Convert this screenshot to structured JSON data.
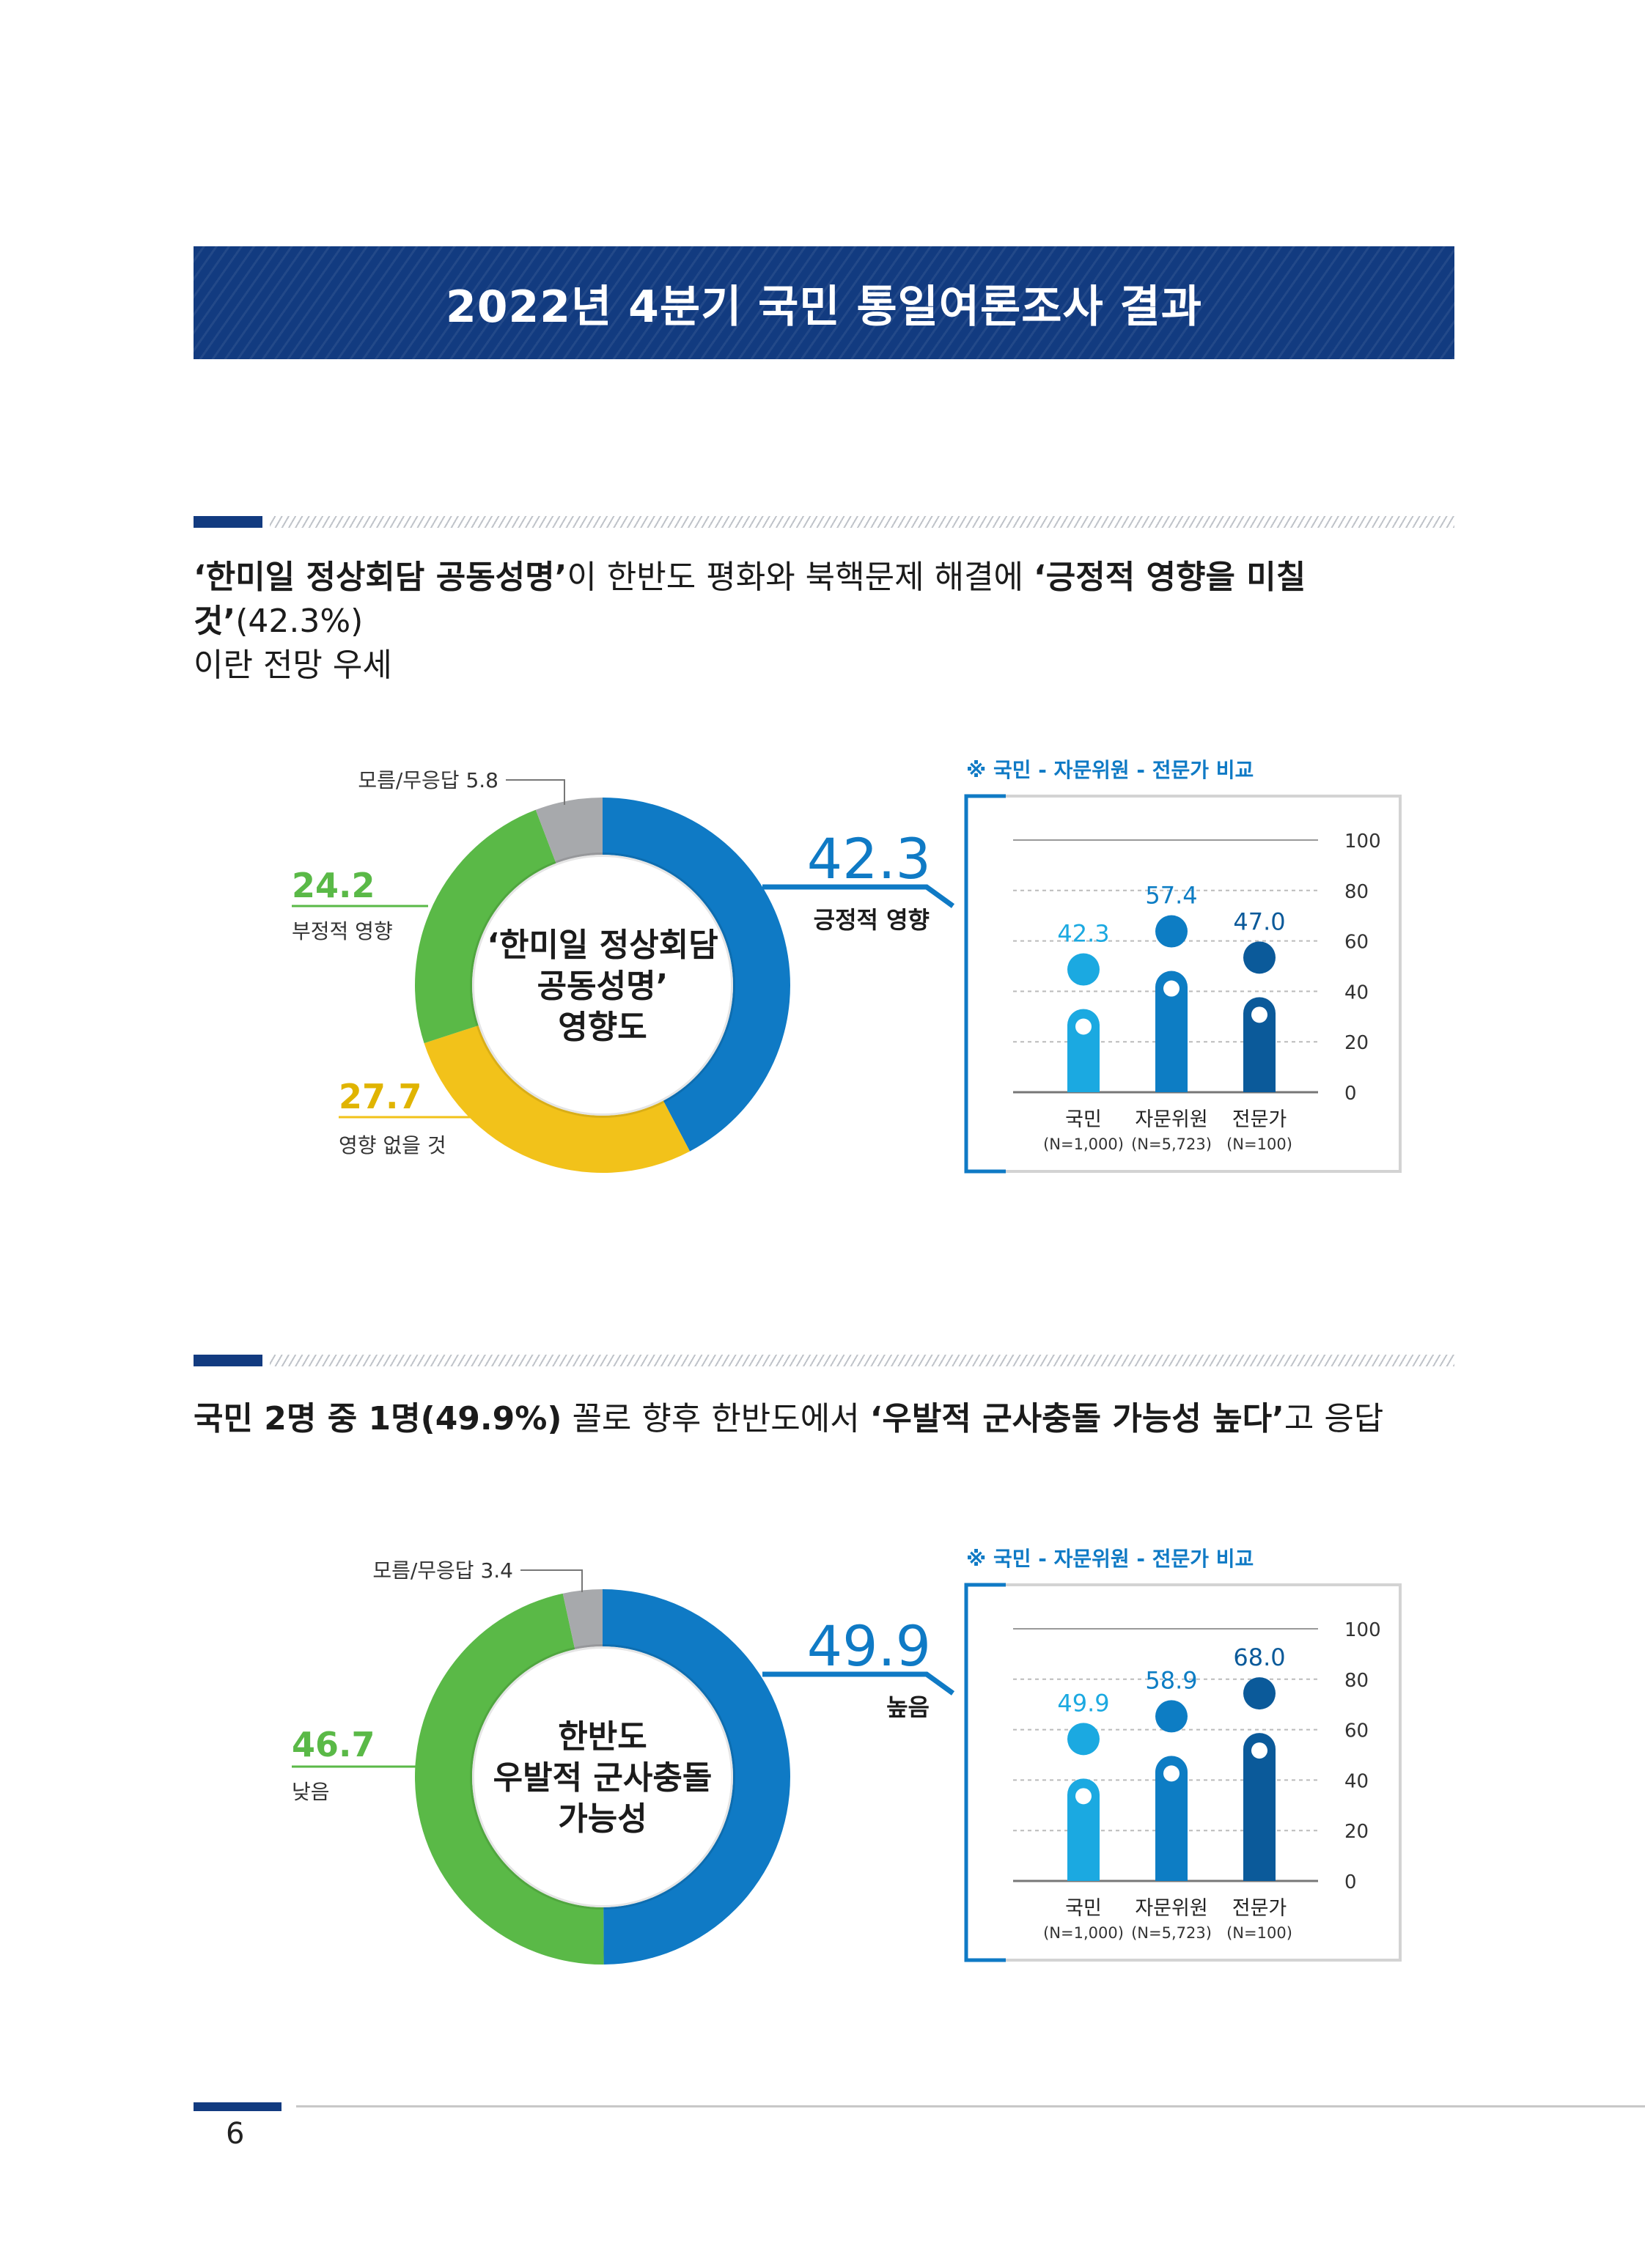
{
  "banner": {
    "title": "2022년 4분기 국민 통일여론조사 결과"
  },
  "section1": {
    "headline": {
      "p1": "‘한미일 정상회담 공동성명’",
      "p2": "이 한반도 평화와 북핵문제 해결에 ",
      "p3": "‘긍정적 영향을 미칠 것’",
      "p4": "(42.3%)",
      "p5": "이란 전망 우세"
    }
  },
  "section2": {
    "headline": {
      "p1": "국민 2명 중 1명(49.9%)",
      "p2": " 꼴로 향후 한반도에서 ",
      "p3": "‘우발적 군사충돌 가능성 높다’",
      "p4": "고 응답"
    }
  },
  "footer": {
    "page_number": "6"
  },
  "colors": {
    "blue": "#0f7ac5",
    "green": "#5ab947",
    "yellow": "#f2c21a",
    "gray": "#a7a9ac",
    "navy": "#123b80",
    "bar_light": "#1ba9e1",
    "bar_mid": "#0d7dc4",
    "bar_dark": "#0b5a9a"
  },
  "chart_data": [
    {
      "type": "pie",
      "center_label": [
        "‘한미일 정상회담",
        "공동성명’",
        "영향도"
      ],
      "slices": [
        {
          "label": "긍정적 영향",
          "value": 42.3,
          "color": "#0f7ac5"
        },
        {
          "label": "영향 없을 것",
          "value": 27.7,
          "color": "#f2c21a"
        },
        {
          "label": "부정적 영향",
          "value": 24.2,
          "color": "#5ab947"
        },
        {
          "label": "모름/무응답",
          "value": 5.8,
          "color": "#a7a9ac"
        }
      ],
      "labels": {
        "unknown": "모름/무응답 5.8",
        "negative_value": "24.2",
        "negative_label": "부정적 영향",
        "neutral_value": "27.7",
        "neutral_label": "영향 없을 것",
        "highlight_value": "42.3",
        "highlight_label": "긍정적 영향"
      }
    },
    {
      "type": "bar",
      "title": "※ 국민 - 자문위원 - 전문가 비교",
      "categories": [
        "국민",
        "자문위원",
        "전문가"
      ],
      "sublabels": [
        "(N=1,000)",
        "(N=5,723)",
        "(N=100)"
      ],
      "values": [
        42.3,
        57.4,
        47.0
      ],
      "value_labels": [
        "42.3",
        "57.4",
        "47.0"
      ],
      "ylim": [
        0,
        100
      ],
      "yticks": [
        0,
        20,
        40,
        60,
        80,
        100
      ]
    },
    {
      "type": "pie",
      "center_label": [
        "한반도",
        "우발적 군사충돌",
        "가능성"
      ],
      "slices": [
        {
          "label": "높음",
          "value": 49.9,
          "color": "#0f7ac5"
        },
        {
          "label": "낮음",
          "value": 46.7,
          "color": "#5ab947"
        },
        {
          "label": "모름/무응답",
          "value": 3.4,
          "color": "#a7a9ac"
        }
      ],
      "labels": {
        "unknown": "모름/무응답 3.4",
        "low_value": "46.7",
        "low_label": "낮음",
        "highlight_value": "49.9",
        "highlight_label": "높음"
      }
    },
    {
      "type": "bar",
      "title": "※ 국민 - 자문위원 - 전문가 비교",
      "categories": [
        "국민",
        "자문위원",
        "전문가"
      ],
      "sublabels": [
        "(N=1,000)",
        "(N=5,723)",
        "(N=100)"
      ],
      "values": [
        49.9,
        58.9,
        68.0
      ],
      "value_labels": [
        "49.9",
        "58.9",
        "68.0"
      ],
      "ylim": [
        0,
        100
      ],
      "yticks": [
        0,
        20,
        40,
        60,
        80,
        100
      ]
    }
  ]
}
